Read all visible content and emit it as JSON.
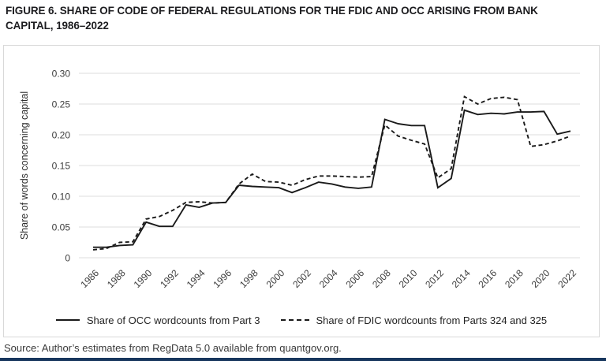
{
  "figure": {
    "title": "FIGURE 6. SHARE OF CODE OF FEDERAL REGULATIONS FOR THE FDIC AND OCC ARISING FROM BANK CAPITAL, 1986–2022",
    "source": "Source: Author’s estimates from RegData 5.0 available from quantgov.org."
  },
  "legend": {
    "occ": "Share of OCC wordcounts from Part 3",
    "fdic": "Share of FDIC wordcounts from Parts 324 and 325"
  },
  "colors": {
    "line": "#1a1a1a",
    "gridline": "#dcdcdc",
    "frame_border": "#d9d9d9",
    "tick_text": "#3d3d3d",
    "bottom_bar": "#17365d"
  },
  "chart_data": {
    "type": "line",
    "title": "FIGURE 6. SHARE OF CODE OF FEDERAL REGULATIONS FOR THE FDIC AND OCC ARISING FROM BANK CAPITAL, 1986–2022",
    "xlabel": "",
    "ylabel": "Share of words concerning capital",
    "ylim": [
      0,
      0.3
    ],
    "grid": true,
    "legend_position": "bottom",
    "ytick_labels": [
      "0",
      "0.05",
      "0.10",
      "0.15",
      "0.20",
      "0.25",
      "0.30"
    ],
    "xtick_years": [
      1986,
      1988,
      1990,
      1992,
      1994,
      1996,
      1998,
      2000,
      2002,
      2004,
      2006,
      2008,
      2010,
      2012,
      2014,
      2016,
      2018,
      2020,
      2022
    ],
    "x": [
      1986,
      1987,
      1988,
      1989,
      1990,
      1991,
      1992,
      1993,
      1994,
      1995,
      1996,
      1997,
      1998,
      1999,
      2000,
      2001,
      2002,
      2003,
      2004,
      2005,
      2006,
      2007,
      2008,
      2009,
      2010,
      2011,
      2012,
      2013,
      2014,
      2015,
      2016,
      2017,
      2018,
      2019,
      2020,
      2021,
      2022
    ],
    "series": [
      {
        "name": "Share of OCC wordcounts from Part 3",
        "style": "solid",
        "values": [
          0.017,
          0.017,
          0.02,
          0.021,
          0.058,
          0.051,
          0.051,
          0.086,
          0.082,
          0.089,
          0.09,
          0.118,
          0.116,
          0.115,
          0.114,
          0.106,
          0.114,
          0.123,
          0.12,
          0.115,
          0.113,
          0.115,
          0.225,
          0.218,
          0.215,
          0.215,
          0.114,
          0.129,
          0.24,
          0.233,
          0.235,
          0.234,
          0.237,
          0.237,
          0.238,
          0.201,
          0.206
        ]
      },
      {
        "name": "Share of FDIC wordcounts from Parts 324 and 325",
        "style": "dashed",
        "values": [
          0.013,
          0.015,
          0.025,
          0.026,
          0.063,
          0.067,
          0.077,
          0.09,
          0.091,
          0.089,
          0.09,
          0.12,
          0.136,
          0.124,
          0.123,
          0.118,
          0.127,
          0.133,
          0.133,
          0.132,
          0.131,
          0.132,
          0.216,
          0.198,
          0.191,
          0.185,
          0.13,
          0.145,
          0.262,
          0.25,
          0.259,
          0.261,
          0.257,
          0.181,
          0.184,
          0.19,
          0.198
        ]
      }
    ]
  }
}
